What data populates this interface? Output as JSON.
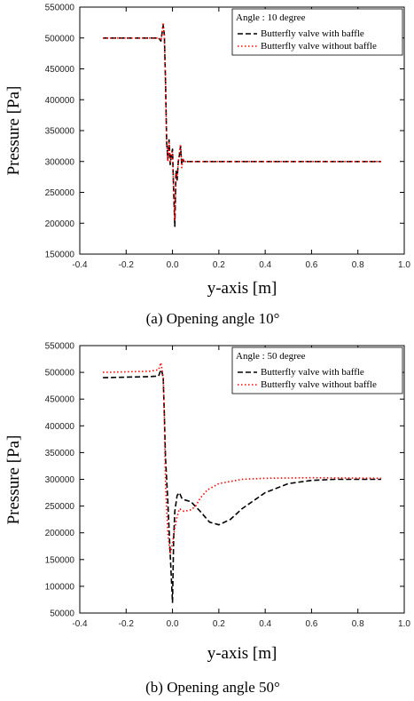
{
  "chart_data": [
    {
      "type": "line",
      "title": "",
      "caption": "(a)  Opening  angle  10°",
      "xlabel": "y-axis [m]",
      "ylabel": "Pressure [Pa]",
      "xlim": [
        -0.4,
        1.0
      ],
      "ylim": [
        150000,
        550000
      ],
      "x_ticks": [
        "-0.4",
        "-0.2",
        "0.0",
        "0.2",
        "0.4",
        "0.6",
        "0.8",
        "1.0"
      ],
      "y_ticks": [
        "150000",
        "200000",
        "250000",
        "300000",
        "350000",
        "400000",
        "450000",
        "500000",
        "550000"
      ],
      "legend_title": "Angle : 10 degree",
      "legend_position": "top-right",
      "series": [
        {
          "name": "Butterfly valve with baffle",
          "color": "#000000",
          "style": "dashed",
          "x": [
            -0.3,
            -0.06,
            -0.05,
            -0.04,
            -0.035,
            -0.03,
            -0.025,
            -0.02,
            -0.015,
            -0.01,
            -0.005,
            0.0,
            0.005,
            0.01,
            0.015,
            0.02,
            0.025,
            0.03,
            0.035,
            0.04,
            0.045,
            0.05,
            0.06,
            0.2,
            0.4,
            0.6,
            0.9
          ],
          "y": [
            500000,
            500000,
            495000,
            520000,
            505000,
            430000,
            330000,
            305000,
            335000,
            295000,
            310000,
            320000,
            250000,
            195000,
            285000,
            270000,
            300000,
            310000,
            325000,
            295000,
            303000,
            300000,
            300000,
            300000,
            300000,
            300000,
            300000
          ]
        },
        {
          "name": "Butterfly valve without baffle",
          "color": "#ff0000",
          "style": "dotted",
          "x": [
            -0.3,
            -0.06,
            -0.05,
            -0.04,
            -0.035,
            -0.03,
            -0.025,
            -0.02,
            -0.015,
            -0.01,
            -0.005,
            0.0,
            0.005,
            0.01,
            0.015,
            0.02,
            0.025,
            0.03,
            0.035,
            0.04,
            0.045,
            0.05,
            0.06,
            0.2,
            0.4,
            0.6,
            0.9
          ],
          "y": [
            500000,
            500000,
            496000,
            525000,
            503000,
            425000,
            335000,
            300000,
            330000,
            300000,
            315000,
            315000,
            255000,
            205000,
            280000,
            275000,
            298000,
            315000,
            328000,
            290000,
            305000,
            300000,
            300000,
            300000,
            300000,
            300000,
            300000
          ]
        }
      ]
    },
    {
      "type": "line",
      "title": "",
      "caption": "(b)  Opening  angle  50°",
      "xlabel": "y-axis [m]",
      "ylabel": "Pressure [Pa]",
      "xlim": [
        -0.4,
        1.0
      ],
      "ylim": [
        50000,
        550000
      ],
      "x_ticks": [
        "-0.4",
        "-0.2",
        "0.0",
        "0.2",
        "0.4",
        "0.6",
        "0.8",
        "1.0"
      ],
      "y_ticks": [
        "50000",
        "100000",
        "150000",
        "200000",
        "250000",
        "300000",
        "350000",
        "400000",
        "450000",
        "500000",
        "550000"
      ],
      "legend_title": "Angle : 50 degree",
      "legend_position": "top-right",
      "series": [
        {
          "name": "Butterfly valve with baffle",
          "color": "#000000",
          "style": "dashed",
          "x": [
            -0.3,
            -0.1,
            -0.06,
            -0.05,
            -0.045,
            -0.04,
            -0.035,
            -0.03,
            -0.02,
            -0.01,
            0.0,
            0.005,
            0.01,
            0.02,
            0.03,
            0.04,
            0.05,
            0.08,
            0.12,
            0.16,
            0.2,
            0.25,
            0.3,
            0.4,
            0.5,
            0.6,
            0.7,
            0.8,
            0.9
          ],
          "y": [
            490000,
            492000,
            493000,
            505000,
            500000,
            490000,
            420000,
            340000,
            260000,
            160000,
            70000,
            190000,
            240000,
            270000,
            275000,
            265000,
            262000,
            258000,
            240000,
            220000,
            215000,
            225000,
            245000,
            275000,
            292000,
            298000,
            300000,
            300000,
            300000
          ]
        },
        {
          "name": "Butterfly valve without baffle",
          "color": "#ff0000",
          "style": "dotted",
          "x": [
            -0.3,
            -0.1,
            -0.06,
            -0.05,
            -0.045,
            -0.04,
            -0.035,
            -0.03,
            -0.02,
            -0.01,
            0.0,
            0.01,
            0.02,
            0.03,
            0.05,
            0.08,
            0.1,
            0.12,
            0.15,
            0.2,
            0.3,
            0.4,
            0.6,
            0.9
          ],
          "y": [
            500000,
            502000,
            505000,
            518000,
            505000,
            490000,
            420000,
            290000,
            200000,
            160000,
            180000,
            210000,
            230000,
            245000,
            240000,
            243000,
            250000,
            265000,
            280000,
            292000,
            300000,
            302000,
            303000,
            302000
          ]
        }
      ]
    }
  ]
}
